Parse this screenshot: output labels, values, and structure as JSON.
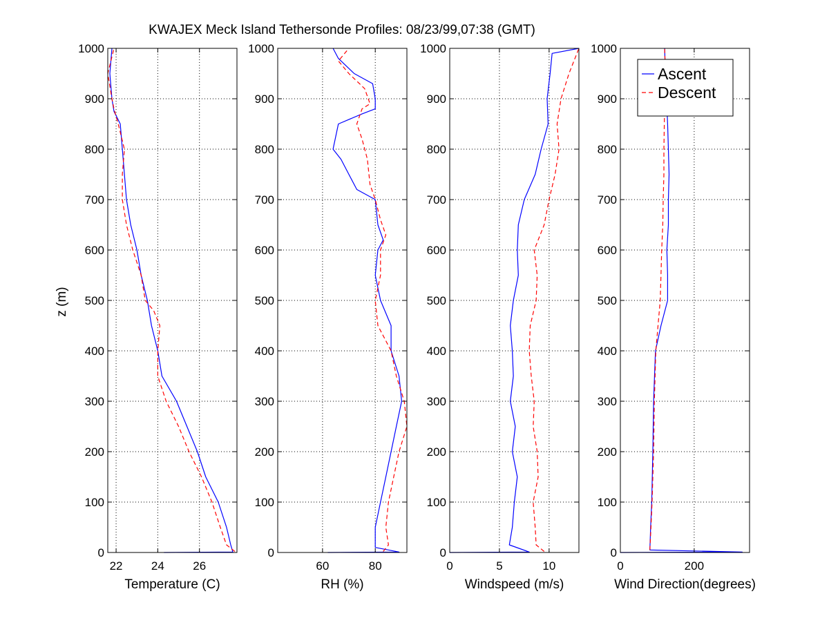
{
  "chart_data": {
    "type": "line",
    "title": "KWAJEX Meck Island Tethersonde Profiles: 08/23/99,07:38 (GMT)",
    "ylabel": "z (m)",
    "ylim": [
      0,
      1000
    ],
    "yticks": [
      0,
      100,
      200,
      300,
      400,
      500,
      600,
      700,
      800,
      900,
      1000
    ],
    "grid": true,
    "legend": {
      "placement": "top-right",
      "entries": [
        "Ascent",
        "Descent"
      ]
    },
    "colors": {
      "ascent": "#0000ff",
      "descent": "#ff0000"
    },
    "panels": [
      {
        "xlabel": "Temperature (C)",
        "xlim": [
          21.6,
          27.8
        ],
        "xticks": [
          22,
          24,
          26
        ],
        "xtick_labels": [
          "22",
          "24",
          "26"
        ],
        "series": [
          {
            "name": "Ascent",
            "points": [
              [
                24.3,
                0
              ],
              [
                27.6,
                1
              ],
              [
                27.5,
                15
              ],
              [
                27.3,
                50
              ],
              [
                26.9,
                100
              ],
              [
                26.3,
                150
              ],
              [
                25.9,
                200
              ],
              [
                25.4,
                250
              ],
              [
                24.9,
                300
              ],
              [
                24.2,
                350
              ],
              [
                24.0,
                400
              ],
              [
                23.7,
                450
              ],
              [
                23.5,
                500
              ],
              [
                23.2,
                550
              ],
              [
                23.0,
                600
              ],
              [
                22.7,
                650
              ],
              [
                22.5,
                700
              ],
              [
                22.4,
                750
              ],
              [
                22.3,
                800
              ],
              [
                22.2,
                850
              ],
              [
                21.9,
                875
              ],
              [
                21.8,
                900
              ],
              [
                21.7,
                950
              ],
              [
                21.8,
                1000
              ]
            ]
          },
          {
            "name": "Descent",
            "points": [
              [
                27.7,
                2
              ],
              [
                27.3,
                15
              ],
              [
                27.0,
                50
              ],
              [
                26.6,
                100
              ],
              [
                26.1,
                150
              ],
              [
                25.5,
                200
              ],
              [
                25.0,
                250
              ],
              [
                24.4,
                300
              ],
              [
                24.0,
                350
              ],
              [
                24.0,
                400
              ],
              [
                24.1,
                450
              ],
              [
                23.8,
                480
              ],
              [
                23.4,
                500
              ],
              [
                23.2,
                550
              ],
              [
                22.8,
                600
              ],
              [
                22.5,
                650
              ],
              [
                22.3,
                700
              ],
              [
                22.3,
                750
              ],
              [
                22.4,
                800
              ],
              [
                22.1,
                850
              ],
              [
                21.9,
                880
              ],
              [
                21.8,
                900
              ],
              [
                21.6,
                950
              ],
              [
                21.9,
                1000
              ]
            ]
          }
        ]
      },
      {
        "xlabel": "RH (%)",
        "xlim": [
          43,
          92
        ],
        "xticks": [
          60,
          80
        ],
        "xtick_labels": [
          "60",
          "80"
        ],
        "series": [
          {
            "name": "Ascent",
            "points": [
              [
                62,
                0
              ],
              [
                89,
                1
              ],
              [
                80,
                10
              ],
              [
                80,
                50
              ],
              [
                82,
                100
              ],
              [
                84,
                150
              ],
              [
                86,
                200
              ],
              [
                88,
                250
              ],
              [
                90,
                300
              ],
              [
                89,
                350
              ],
              [
                86,
                400
              ],
              [
                86,
                450
              ],
              [
                82,
                500
              ],
              [
                80,
                550
              ],
              [
                81,
                600
              ],
              [
                83,
                620
              ],
              [
                81,
                650
              ],
              [
                80,
                700
              ],
              [
                73,
                720
              ],
              [
                70,
                750
              ],
              [
                67,
                780
              ],
              [
                64,
                800
              ],
              [
                66,
                850
              ],
              [
                75,
                870
              ],
              [
                80,
                880
              ],
              [
                80,
                900
              ],
              [
                79,
                930
              ],
              [
                72,
                950
              ],
              [
                66,
                980
              ],
              [
                64,
                1000
              ]
            ]
          },
          {
            "name": "Descent",
            "points": [
              [
                83,
                2
              ],
              [
                85,
                15
              ],
              [
                84,
                50
              ],
              [
                85,
                100
              ],
              [
                87,
                150
              ],
              [
                89,
                200
              ],
              [
                92,
                250
              ],
              [
                91,
                300
              ],
              [
                88,
                350
              ],
              [
                86,
                400
              ],
              [
                81,
                450
              ],
              [
                80,
                500
              ],
              [
                82,
                550
              ],
              [
                82,
                600
              ],
              [
                84,
                630
              ],
              [
                82,
                660
              ],
              [
                80,
                700
              ],
              [
                78,
                730
              ],
              [
                77,
                780
              ],
              [
                75,
                820
              ],
              [
                73,
                850
              ],
              [
                75,
                880
              ],
              [
                78,
                890
              ],
              [
                76,
                920
              ],
              [
                70,
                950
              ],
              [
                66,
                975
              ],
              [
                70,
                1000
              ]
            ]
          }
        ]
      },
      {
        "xlabel": "Windspeed (m/s)",
        "xlim": [
          0,
          13
        ],
        "xticks": [
          0,
          5,
          10
        ],
        "xtick_labels": [
          "0",
          "5",
          "10"
        ],
        "series": [
          {
            "name": "Ascent",
            "points": [
              [
                0,
                0
              ],
              [
                8,
                1
              ],
              [
                6,
                15
              ],
              [
                6.3,
                50
              ],
              [
                6.5,
                100
              ],
              [
                6.8,
                150
              ],
              [
                6.3,
                200
              ],
              [
                6.6,
                250
              ],
              [
                6.1,
                300
              ],
              [
                6.4,
                350
              ],
              [
                6.3,
                400
              ],
              [
                6.1,
                450
              ],
              [
                6.4,
                500
              ],
              [
                6.9,
                550
              ],
              [
                6.8,
                600
              ],
              [
                6.9,
                650
              ],
              [
                7.5,
                700
              ],
              [
                8.6,
                750
              ],
              [
                9.2,
                800
              ],
              [
                9.9,
                850
              ],
              [
                9.8,
                900
              ],
              [
                10.1,
                950
              ],
              [
                10.3,
                990
              ],
              [
                13,
                1000
              ]
            ]
          },
          {
            "name": "Descent",
            "points": [
              [
                9.5,
                2
              ],
              [
                8.7,
                15
              ],
              [
                8.6,
                50
              ],
              [
                8.4,
                100
              ],
              [
                8.9,
                150
              ],
              [
                8.8,
                200
              ],
              [
                8.4,
                250
              ],
              [
                8.5,
                300
              ],
              [
                8.2,
                350
              ],
              [
                8.0,
                400
              ],
              [
                8.1,
                450
              ],
              [
                8.7,
                500
              ],
              [
                8.8,
                550
              ],
              [
                8.5,
                600
              ],
              [
                9.5,
                650
              ],
              [
                10.0,
                700
              ],
              [
                10.6,
                750
              ],
              [
                11.0,
                800
              ],
              [
                10.8,
                850
              ],
              [
                11.2,
                900
              ],
              [
                12.0,
                950
              ],
              [
                13.0,
                1000
              ]
            ]
          }
        ]
      },
      {
        "xlabel": "Wind Direction(degrees)",
        "xlim": [
          0,
          350
        ],
        "xticks": [
          0,
          200
        ],
        "xtick_labels": [
          "0",
          "200"
        ],
        "series": [
          {
            "name": "Ascent",
            "points": [
              [
                0,
                0
              ],
              [
                330,
                1
              ],
              [
                80,
                5
              ],
              [
                82,
                50
              ],
              [
                85,
                100
              ],
              [
                88,
                200
              ],
              [
                90,
                300
              ],
              [
                95,
                400
              ],
              [
                110,
                450
              ],
              [
                128,
                500
              ],
              [
                128,
                550
              ],
              [
                126,
                600
              ],
              [
                130,
                650
              ],
              [
                130,
                700
              ],
              [
                132,
                750
              ],
              [
                130,
                800
              ],
              [
                128,
                850
              ],
              [
                125,
                900
              ],
              [
                122,
                950
              ],
              [
                120,
                1000
              ]
            ]
          },
          {
            "name": "Descent",
            "points": [
              [
                80,
                5
              ],
              [
                83,
                50
              ],
              [
                86,
                100
              ],
              [
                90,
                200
              ],
              [
                92,
                300
              ],
              [
                96,
                400
              ],
              [
                102,
                450
              ],
              [
                108,
                500
              ],
              [
                110,
                550
              ],
              [
                112,
                600
              ],
              [
                115,
                650
              ],
              [
                116,
                700
              ],
              [
                118,
                750
              ],
              [
                118,
                800
              ],
              [
                119,
                850
              ],
              [
                120,
                900
              ],
              [
                122,
                950
              ],
              [
                120,
                1000
              ]
            ]
          }
        ]
      }
    ]
  }
}
